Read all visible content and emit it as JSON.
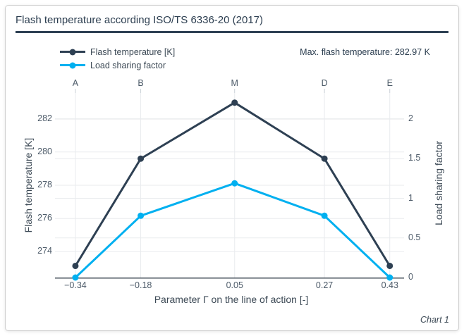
{
  "header": {
    "title": "Flash temperature according ISO/TS 6336-20 (2017)"
  },
  "annotations": {
    "max_flash_temperature": "Max. flash temperature: 282.97 K"
  },
  "footer": {
    "caption": "Chart 1"
  },
  "chart_data": {
    "type": "line",
    "x": [
      -0.34,
      -0.18,
      0.05,
      0.27,
      0.43
    ],
    "x_tick_labels": [
      "−0.34",
      "−0.18",
      "0.05",
      "0.27",
      "0.43"
    ],
    "point_labels": [
      "A",
      "B",
      "M",
      "D",
      "E"
    ],
    "xlabel": "Parameter Γ on the line of action [-]",
    "x_range": [
      -0.39,
      0.465
    ],
    "series": [
      {
        "name": "Flash temperature [K]",
        "axis": "left",
        "color": "#2e4053",
        "values": [
          273.15,
          279.6,
          282.97,
          279.6,
          273.15
        ]
      },
      {
        "name": "Load sharing factor",
        "axis": "right",
        "color": "#00b0f0",
        "values": [
          0,
          0.78,
          1.19,
          0.78,
          0
        ]
      }
    ],
    "left_axis": {
      "label": "Flash temperature [K]",
      "ticks": [
        274,
        276,
        278,
        280,
        282
      ],
      "tick_labels": [
        "274",
        "276",
        "278",
        "280",
        "282"
      ],
      "range": [
        272.45,
        283.55
      ]
    },
    "right_axis": {
      "label": "Load sharing factor",
      "ticks": [
        0,
        0.5,
        1,
        1.5,
        2
      ],
      "tick_labels": [
        "0",
        "0.5",
        "1",
        "1.5",
        "2"
      ],
      "range": [
        0,
        2.33
      ]
    },
    "grid": true,
    "legend_position": "top-left",
    "colors": {
      "grid": "#e9ebee",
      "top_tick": "#c9d0d6",
      "axis_line": "#444f5a",
      "text": "#4c5a68",
      "title": "#2c3e50"
    }
  }
}
